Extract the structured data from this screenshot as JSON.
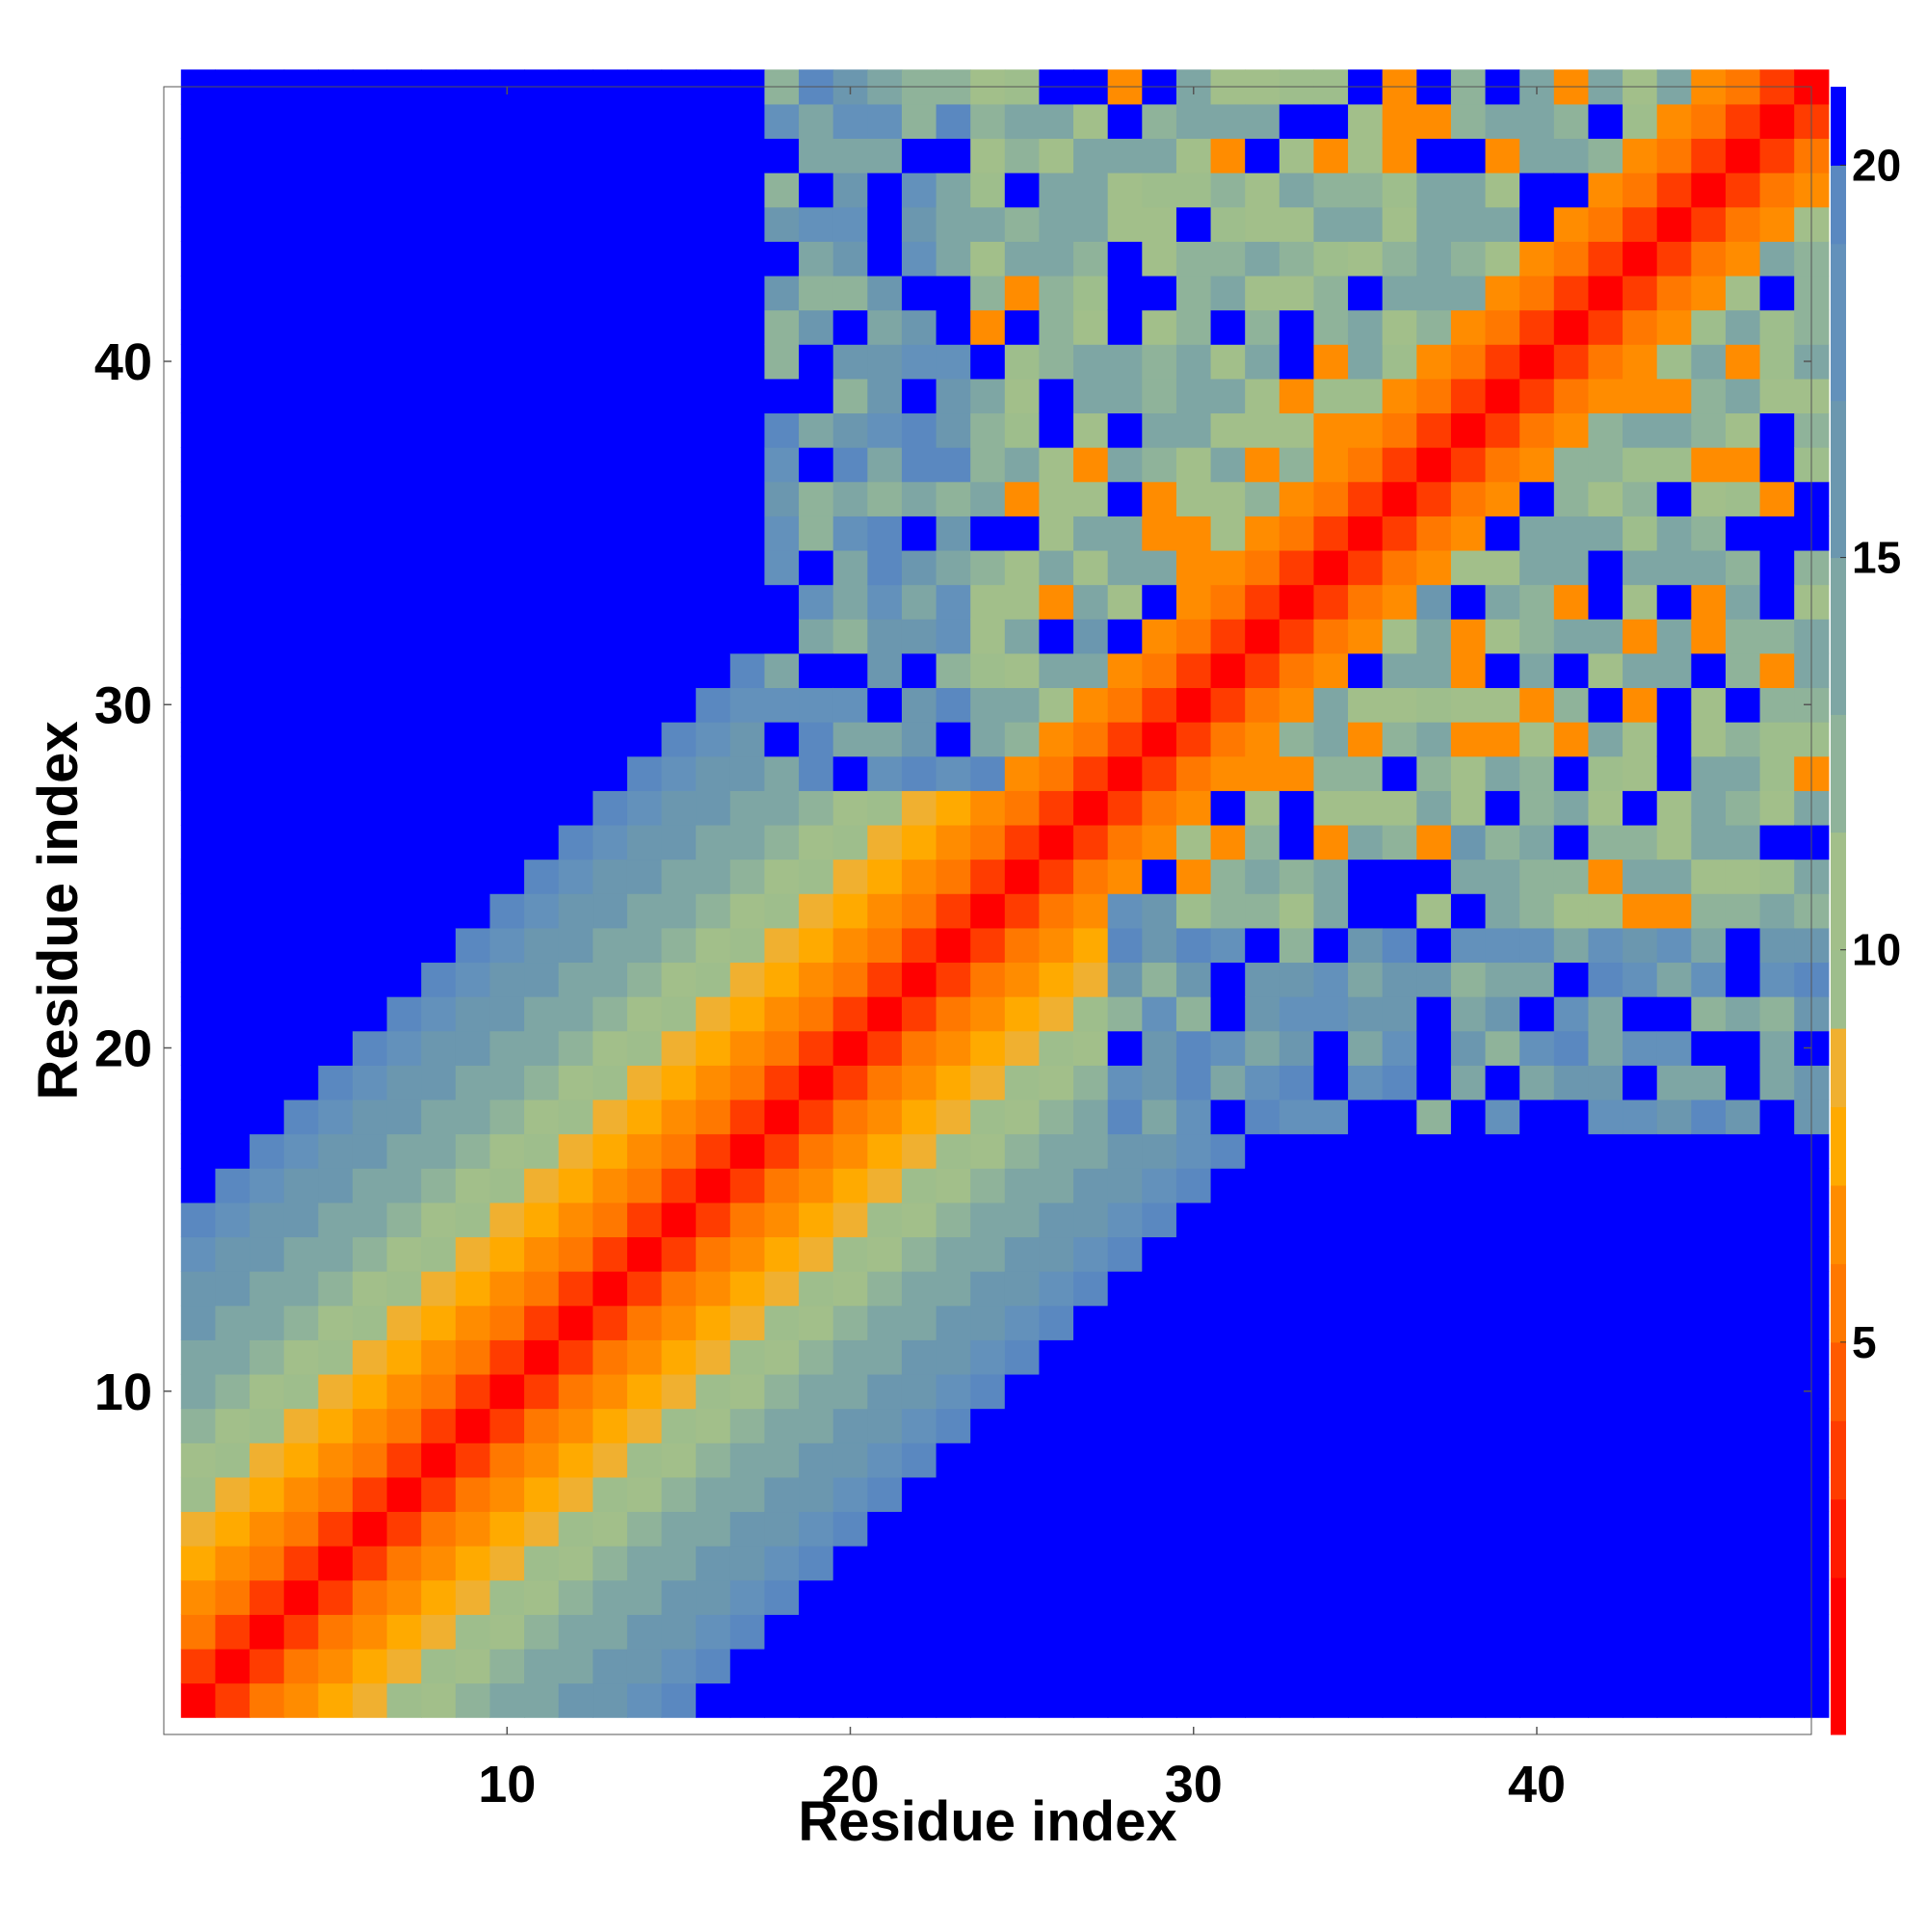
{
  "chart_data": {
    "type": "heatmap",
    "title": "",
    "xlabel": "Residue index",
    "ylabel": "Residue index",
    "n_residues": 48,
    "x_range": [
      1,
      48
    ],
    "y_range": [
      1,
      48
    ],
    "x_ticks": [
      10,
      20,
      30,
      40
    ],
    "y_ticks": [
      10,
      20,
      30,
      40
    ],
    "colorbar": {
      "ticks": [
        5,
        10,
        15,
        20
      ],
      "range": [
        0,
        21
      ],
      "capped_value": 21,
      "bins": [
        {
          "max": 2,
          "color": "#ff0000"
        },
        {
          "max": 3,
          "color": "#ff1a00"
        },
        {
          "max": 4,
          "color": "#ff3c00"
        },
        {
          "max": 5,
          "color": "#ff5a00"
        },
        {
          "max": 6,
          "color": "#ff7800"
        },
        {
          "max": 7,
          "color": "#ff8c00"
        },
        {
          "max": 8,
          "color": "#ffaa00"
        },
        {
          "max": 9,
          "color": "#f0b030"
        },
        {
          "max": 10,
          "color": "#9ebe8c"
        },
        {
          "max": 11.5,
          "color": "#a2bf8a"
        },
        {
          "max": 13,
          "color": "#8fb39a"
        },
        {
          "max": 15,
          "color": "#7ea6a4"
        },
        {
          "max": 17,
          "color": "#6b97af"
        },
        {
          "max": 19,
          "color": "#6391bb"
        },
        {
          "max": 20,
          "color": "#5a88c0"
        },
        {
          "max": 99,
          "color": "#0000ff"
        }
      ]
    },
    "matrix_model": {
      "description_of_values": "distance between residues i and j; values above 20 drawn in the cap color",
      "diagonal_band": [
        [
          0,
          1.5
        ],
        [
          1,
          3.8
        ],
        [
          2,
          5.2
        ],
        [
          3,
          6.5
        ]
      ],
      "far_band_start": 4,
      "far_band_step": 1.15,
      "far_region_thresholds": {
        "compact_start_residue": 18
      }
    },
    "colors": {
      "cap": "#0000ff",
      "axis": "#555555"
    }
  }
}
